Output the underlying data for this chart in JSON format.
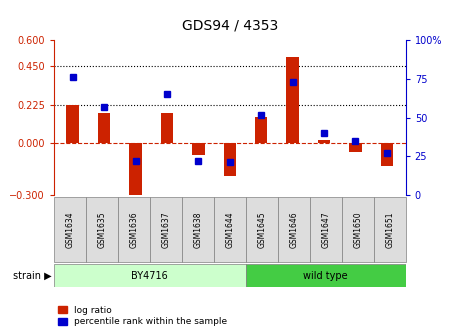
{
  "title": "GDS94 / 4353",
  "samples": [
    "GSM1634",
    "GSM1635",
    "GSM1636",
    "GSM1637",
    "GSM1638",
    "GSM1644",
    "GSM1645",
    "GSM1646",
    "GSM1647",
    "GSM1650",
    "GSM1651"
  ],
  "log_ratio": [
    0.225,
    0.175,
    -0.38,
    0.175,
    -0.07,
    -0.19,
    0.155,
    0.5,
    0.02,
    -0.05,
    -0.13
  ],
  "percentile_rank": [
    76,
    57,
    22,
    65,
    22,
    21,
    52,
    73,
    40,
    35,
    27
  ],
  "ylim_left": [
    -0.3,
    0.6
  ],
  "ylim_right": [
    0,
    100
  ],
  "yticks_left": [
    -0.3,
    0,
    0.225,
    0.45,
    0.6
  ],
  "yticks_right": [
    0,
    25,
    50,
    75,
    100
  ],
  "hlines": [
    0.225,
    0.45
  ],
  "bar_color": "#cc2200",
  "dot_color": "#0000cc",
  "zero_line_color": "#cc2200",
  "background_color": "#ffffff",
  "by4716_color": "#ccffcc",
  "wildtype_color": "#44cc44",
  "sample_box_color": "#dddddd",
  "title_fontsize": 10,
  "tick_fontsize": 7,
  "strain_fontsize": 7,
  "sample_fontsize": 5.5,
  "legend_fontsize": 6.5,
  "bar_width": 0.4,
  "n_by4716": 6,
  "n_wildtype": 5
}
